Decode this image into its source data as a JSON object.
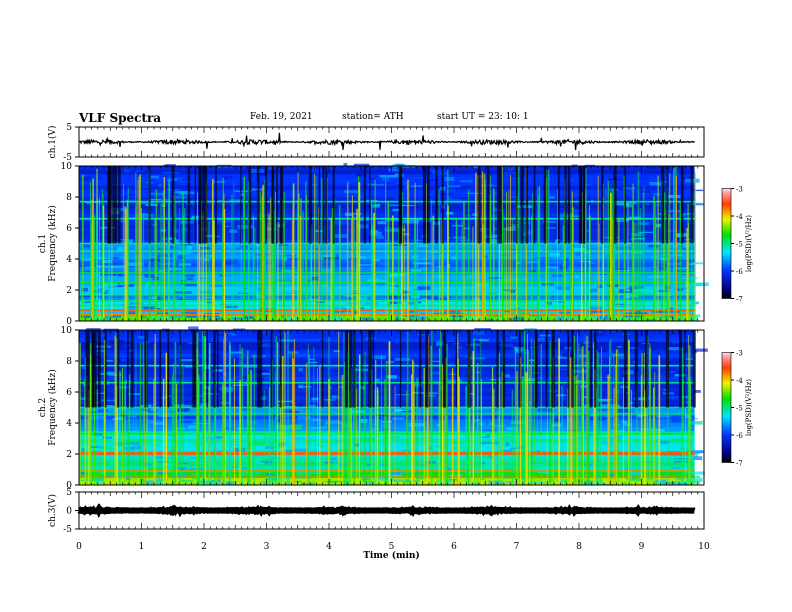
{
  "header": {
    "title": "VLF Spectra",
    "date": "Feb. 19, 2021",
    "station": "station= ATH",
    "start": "start  UT =   23: 10: 1"
  },
  "chart_data": [
    {
      "type": "line",
      "name": "ch1-waveform",
      "ylabel": "ch.1(V)",
      "ylim": [
        -5,
        5
      ],
      "yticks": [
        "5",
        "-5"
      ],
      "xlim": [
        0,
        10
      ],
      "description_values": {
        "baseline": 0,
        "noise_amplitude": 0.8
      }
    },
    {
      "type": "heatmap",
      "name": "ch1-spectrogram",
      "ylabel": "ch.1\nFrequency (kHz)",
      "ylim": [
        0,
        10
      ],
      "yticks": [
        "0",
        "2",
        "4",
        "6",
        "8",
        "10"
      ],
      "xlim": [
        0,
        9.85
      ],
      "colorbar": {
        "label": "log(PSD)(V²/Hz)",
        "range": [
          -7,
          -3
        ],
        "ticks": [
          "-3",
          "-4",
          "-5",
          "-6",
          "-7"
        ]
      }
    },
    {
      "type": "heatmap",
      "name": "ch2-spectrogram",
      "ylabel": "ch.2\nFrequency (kHz)",
      "ylim": [
        0,
        10
      ],
      "yticks": [
        "0",
        "2",
        "4",
        "6",
        "8",
        "10"
      ],
      "xlim": [
        0,
        9.85
      ],
      "colorbar": {
        "label": "log(PSD)(V²/Hz)",
        "range": [
          -7,
          -3
        ],
        "ticks": [
          "-3",
          "-4",
          "-5",
          "-6",
          "-7"
        ]
      }
    },
    {
      "type": "line",
      "name": "ch3-waveform",
      "ylabel": "ch.3(V)",
      "ylim": [
        -5,
        5
      ],
      "yticks": [
        "5",
        "0",
        "-5"
      ],
      "xlim": [
        0,
        10
      ],
      "description_values": {
        "baseline": 0,
        "noise_amplitude": 0.2
      }
    }
  ],
  "xaxis": {
    "label": "Time (min)",
    "ticks": [
      "0",
      "1",
      "2",
      "3",
      "4",
      "5",
      "6",
      "7",
      "8",
      "9",
      "10"
    ]
  }
}
